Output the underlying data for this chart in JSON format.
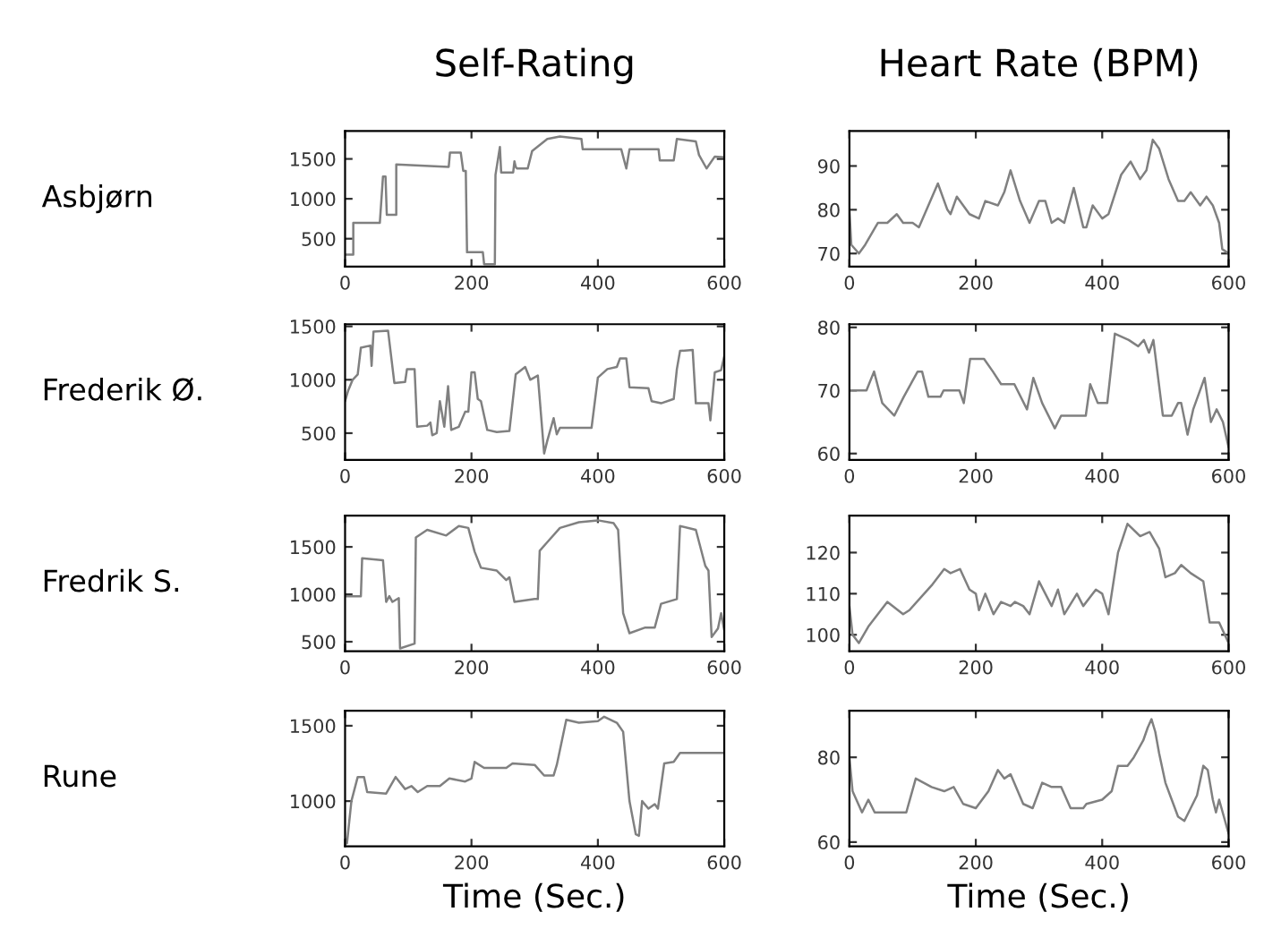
{
  "chart_data": [
    {
      "type": "line",
      "title": "Self-Rating",
      "ylabel": "Asbjørn",
      "color": "#808080",
      "xlim": [
        0,
        600
      ],
      "ylim": [
        150,
        1850
      ],
      "xticks": [
        0,
        200,
        400,
        600
      ],
      "yticks": [
        500,
        1000,
        1500
      ],
      "x": [
        0,
        13,
        13,
        55,
        60,
        64,
        66,
        81,
        81,
        164,
        166,
        183,
        187,
        191,
        193,
        218,
        220,
        237,
        238,
        245,
        247,
        266,
        268,
        270,
        272,
        289,
        296,
        320,
        340,
        374,
        376,
        437,
        445,
        450,
        496,
        498,
        520,
        525,
        555,
        560,
        572,
        585,
        600
      ],
      "values": [
        300,
        300,
        700,
        700,
        1280,
        1280,
        800,
        800,
        1430,
        1400,
        1580,
        1580,
        1350,
        1350,
        330,
        330,
        180,
        180,
        1300,
        1650,
        1330,
        1330,
        1470,
        1400,
        1380,
        1380,
        1600,
        1750,
        1780,
        1750,
        1620,
        1620,
        1380,
        1620,
        1620,
        1480,
        1480,
        1750,
        1720,
        1550,
        1380,
        1530,
        1520
      ]
    },
    {
      "type": "line",
      "title": "Heart Rate (BPM)",
      "color": "#808080",
      "xlim": [
        0,
        600
      ],
      "ylim": [
        67,
        98
      ],
      "xticks": [
        0,
        200,
        400,
        600
      ],
      "yticks": [
        70,
        80,
        90
      ],
      "x": [
        0,
        3,
        15,
        25,
        45,
        60,
        75,
        85,
        100,
        110,
        125,
        140,
        155,
        160,
        170,
        190,
        205,
        215,
        235,
        245,
        255,
        270,
        285,
        300,
        310,
        320,
        330,
        340,
        355,
        370,
        375,
        385,
        400,
        410,
        430,
        445,
        460,
        470,
        480,
        490,
        505,
        520,
        530,
        540,
        555,
        565,
        575,
        585,
        590,
        600
      ],
      "values": [
        80,
        72,
        70,
        72,
        77,
        77,
        79,
        77,
        77,
        76,
        81,
        86,
        80,
        79,
        83,
        79,
        78,
        82,
        81,
        84,
        89,
        82,
        77,
        82,
        82,
        77,
        78,
        77,
        85,
        76,
        76,
        81,
        78,
        79,
        88,
        91,
        87,
        89,
        96,
        94,
        87,
        82,
        82,
        84,
        81,
        83,
        81,
        77,
        71,
        70
      ]
    },
    {
      "type": "line",
      "ylabel": "Frederik Ø.",
      "color": "#808080",
      "xlim": [
        0,
        600
      ],
      "ylim": [
        250,
        1520
      ],
      "xticks": [
        0,
        200,
        400,
        600
      ],
      "yticks": [
        500,
        1000,
        1500
      ],
      "x": [
        0,
        5,
        12,
        20,
        25,
        40,
        42,
        45,
        68,
        78,
        95,
        98,
        110,
        114,
        130,
        135,
        138,
        145,
        150,
        157,
        163,
        168,
        180,
        190,
        195,
        200,
        205,
        210,
        215,
        225,
        240,
        260,
        270,
        285,
        293,
        305,
        315,
        320,
        330,
        335,
        340,
        390,
        400,
        415,
        430,
        435,
        445,
        450,
        480,
        485,
        500,
        520,
        525,
        530,
        550,
        555,
        575,
        578,
        585,
        595,
        600
      ],
      "values": [
        800,
        900,
        1000,
        1050,
        1300,
        1320,
        1130,
        1450,
        1460,
        970,
        980,
        1100,
        1100,
        560,
        570,
        600,
        480,
        500,
        800,
        560,
        940,
        530,
        560,
        700,
        700,
        1070,
        1070,
        820,
        800,
        530,
        510,
        520,
        1050,
        1120,
        1000,
        1040,
        310,
        430,
        640,
        490,
        550,
        550,
        1020,
        1100,
        1120,
        1200,
        1200,
        930,
        920,
        800,
        780,
        820,
        1100,
        1270,
        1280,
        780,
        780,
        620,
        1070,
        1090,
        1220
      ]
    },
    {
      "type": "line",
      "color": "#808080",
      "xlim": [
        0,
        600
      ],
      "ylim": [
        59,
        80.5
      ],
      "xticks": [
        0,
        200,
        400,
        600
      ],
      "yticks": [
        60,
        70,
        80
      ],
      "x": [
        0,
        27,
        39,
        52,
        71,
        86,
        108,
        115,
        125,
        144,
        149,
        174,
        181,
        191,
        213,
        227,
        240,
        261,
        281,
        291,
        305,
        325,
        335,
        374,
        381,
        393,
        408,
        420,
        442,
        457,
        466,
        474,
        481,
        496,
        510,
        520,
        525,
        535,
        544,
        562,
        572,
        581,
        591,
        600
      ],
      "values": [
        70,
        70,
        73,
        68,
        66,
        69,
        73,
        73,
        69,
        69,
        70,
        70,
        68,
        75,
        75,
        73,
        71,
        71,
        67,
        72,
        68,
        64,
        66,
        66,
        71,
        68,
        68,
        79,
        78,
        77,
        78,
        76,
        78,
        66,
        66,
        68,
        68,
        63,
        67,
        72,
        65,
        67,
        65,
        61
      ]
    },
    {
      "type": "line",
      "ylabel": "Fredrik S.",
      "color": "#808080",
      "xlim": [
        0,
        600
      ],
      "ylim": [
        400,
        1830
      ],
      "xticks": [
        0,
        200,
        400,
        600
      ],
      "yticks": [
        500,
        1000,
        1500
      ],
      "x": [
        0,
        25,
        27,
        60,
        65,
        70,
        75,
        85,
        87,
        110,
        112,
        130,
        160,
        180,
        195,
        205,
        215,
        240,
        255,
        260,
        268,
        300,
        305,
        308,
        320,
        340,
        370,
        400,
        425,
        432,
        440,
        450,
        475,
        490,
        500,
        525,
        530,
        555,
        570,
        575,
        580,
        590,
        595,
        600
      ],
      "values": [
        980,
        980,
        1380,
        1360,
        920,
        980,
        920,
        960,
        430,
        480,
        1600,
        1680,
        1620,
        1720,
        1700,
        1450,
        1280,
        1250,
        1150,
        1180,
        920,
        950,
        950,
        1460,
        1550,
        1700,
        1760,
        1780,
        1750,
        1680,
        800,
        590,
        650,
        650,
        900,
        950,
        1720,
        1680,
        1300,
        1250,
        550,
        640,
        800,
        620
      ]
    },
    {
      "type": "line",
      "color": "#808080",
      "xlim": [
        0,
        600
      ],
      "ylim": [
        96,
        129
      ],
      "xticks": [
        0,
        200,
        400,
        600
      ],
      "yticks": [
        100,
        110,
        120
      ],
      "x": [
        0,
        5,
        15,
        30,
        60,
        85,
        95,
        130,
        150,
        160,
        175,
        190,
        200,
        205,
        215,
        228,
        240,
        255,
        262,
        275,
        285,
        300,
        320,
        330,
        340,
        360,
        370,
        390,
        400,
        410,
        425,
        440,
        460,
        475,
        490,
        500,
        515,
        525,
        540,
        560,
        570,
        585,
        600
      ],
      "values": [
        107,
        100,
        98,
        102,
        108,
        105,
        106,
        112,
        116,
        115,
        116,
        111,
        110,
        106,
        110,
        105,
        108,
        107,
        108,
        107,
        105,
        113,
        107,
        111,
        105,
        110,
        107,
        111,
        110,
        105,
        120,
        127,
        124,
        125,
        121,
        114,
        115,
        117,
        115,
        113,
        103,
        103,
        98
      ]
    },
    {
      "type": "line",
      "ylabel": "Rune",
      "xlabel": "Time (Sec.)",
      "color": "#808080",
      "xlim": [
        0,
        600
      ],
      "ylim": [
        700,
        1600
      ],
      "xticks": [
        0,
        200,
        400,
        600
      ],
      "yticks": [
        1000,
        1500
      ],
      "x": [
        0,
        3,
        10,
        20,
        30,
        35,
        65,
        80,
        95,
        105,
        115,
        130,
        150,
        165,
        190,
        200,
        205,
        220,
        255,
        265,
        300,
        315,
        330,
        335,
        350,
        370,
        400,
        410,
        430,
        440,
        450,
        460,
        465,
        470,
        480,
        490,
        495,
        505,
        520,
        530,
        600
      ],
      "values": [
        750,
        720,
        1000,
        1160,
        1160,
        1060,
        1050,
        1160,
        1080,
        1100,
        1060,
        1100,
        1100,
        1150,
        1130,
        1150,
        1260,
        1220,
        1220,
        1250,
        1240,
        1170,
        1170,
        1240,
        1540,
        1520,
        1530,
        1560,
        1520,
        1460,
        1000,
        780,
        770,
        1000,
        950,
        980,
        950,
        1250,
        1260,
        1320,
        1320
      ]
    },
    {
      "type": "line",
      "xlabel": "Time (Sec.)",
      "color": "#808080",
      "xlim": [
        0,
        600
      ],
      "ylim": [
        59,
        91
      ],
      "xticks": [
        0,
        200,
        400,
        600
      ],
      "yticks": [
        60,
        80
      ],
      "x": [
        0,
        5,
        20,
        30,
        40,
        90,
        105,
        130,
        150,
        165,
        180,
        200,
        220,
        235,
        245,
        255,
        275,
        290,
        305,
        320,
        335,
        350,
        370,
        375,
        400,
        415,
        425,
        440,
        450,
        465,
        472,
        478,
        484,
        490,
        500,
        510,
        520,
        530,
        550,
        560,
        567,
        575,
        580,
        585,
        600
      ],
      "values": [
        80,
        72,
        67,
        70,
        67,
        67,
        75,
        73,
        72,
        73,
        69,
        68,
        72,
        77,
        75,
        76,
        69,
        68,
        74,
        73,
        73,
        68,
        68,
        69,
        70,
        72,
        78,
        78,
        80,
        84,
        87,
        89,
        86,
        81,
        74,
        70,
        66,
        65,
        71,
        78,
        77,
        70,
        67,
        70,
        62
      ]
    }
  ]
}
